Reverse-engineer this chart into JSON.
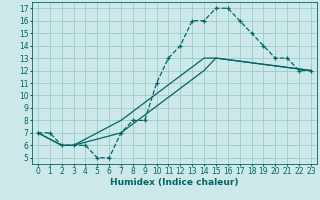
{
  "title": "",
  "xlabel": "Humidex (Indice chaleur)",
  "xlim": [
    -0.5,
    23.5
  ],
  "ylim": [
    4.5,
    17.5
  ],
  "xticks": [
    0,
    1,
    2,
    3,
    4,
    5,
    6,
    7,
    8,
    9,
    10,
    11,
    12,
    13,
    14,
    15,
    16,
    17,
    18,
    19,
    20,
    21,
    22,
    23
  ],
  "yticks": [
    5,
    6,
    7,
    8,
    9,
    10,
    11,
    12,
    13,
    14,
    15,
    16,
    17
  ],
  "bg_color": "#cce8e8",
  "grid_color": "#99cccc",
  "line_color": "#006666",
  "line1_x": [
    0,
    1,
    2,
    3,
    4,
    5,
    6,
    7,
    8,
    9,
    10,
    11,
    12,
    13,
    14,
    15,
    16,
    17,
    18,
    19,
    20,
    21,
    22,
    23
  ],
  "line1_y": [
    7,
    7,
    6,
    6,
    6,
    5,
    5,
    7,
    8,
    8,
    11,
    13,
    14,
    16,
    16,
    17,
    17,
    16,
    15,
    14,
    13,
    13,
    12,
    12
  ],
  "line2_x": [
    0,
    2,
    3,
    7,
    14,
    15,
    23
  ],
  "line2_y": [
    7,
    6,
    6,
    7,
    12,
    13,
    12
  ],
  "line3_x": [
    0,
    2,
    3,
    7,
    14,
    15,
    23
  ],
  "line3_y": [
    7,
    6,
    6,
    8,
    13,
    13,
    12
  ],
  "axis_fontsize": 6.5,
  "tick_fontsize": 5.5
}
